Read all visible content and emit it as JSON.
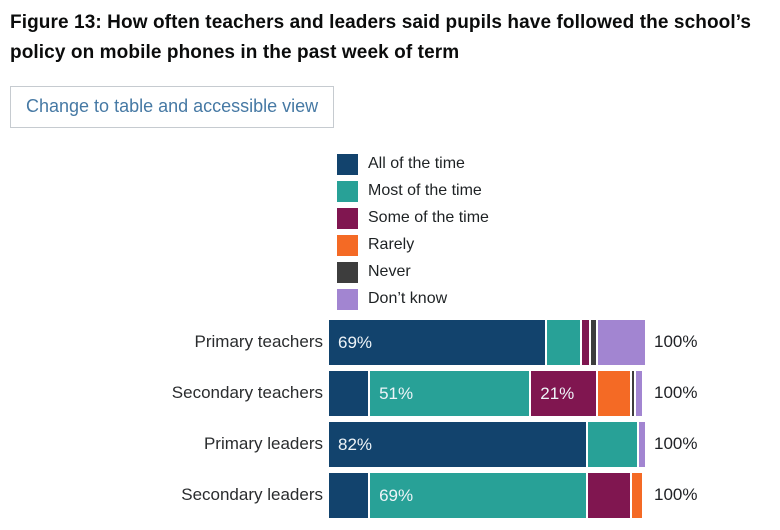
{
  "title": "Figure 13: How often teachers and leaders said pupils have followed the school’s policy on mobile phones in the past week of term",
  "controls": {
    "table_view_label": "Change to table and accessible view"
  },
  "colors": {
    "title_text": "#0b0c0c",
    "button_text": "#4679a4",
    "button_border": "#c6cbd0",
    "bar_label_text": "#eef4f8",
    "segment_gap": "#ffffff"
  },
  "chart_data": {
    "type": "bar",
    "stacked": true,
    "orientation": "horizontal",
    "legend_position": "top",
    "grid": false,
    "xlim": [
      0,
      100
    ],
    "categories": [
      "Primary teachers",
      "Secondary teachers",
      "Primary leaders",
      "Secondary leaders"
    ],
    "series": [
      {
        "name": "All of the time",
        "color": "#12436D",
        "values": [
          69,
          13,
          82,
          13
        ],
        "labels": [
          "69%",
          "",
          "82%",
          ""
        ]
      },
      {
        "name": "Most of the time",
        "color": "#28A197",
        "values": [
          11,
          51,
          16,
          69
        ],
        "labels": [
          "",
          "51%",
          "",
          "69%"
        ]
      },
      {
        "name": "Some of the time",
        "color": "#801650",
        "values": [
          3,
          21,
          0,
          14
        ],
        "labels": [
          "",
          "21%",
          "",
          ""
        ]
      },
      {
        "name": "Rarely",
        "color": "#F46A25",
        "values": [
          0,
          11,
          0,
          3
        ],
        "labels": [
          "",
          "",
          "",
          ""
        ]
      },
      {
        "name": "Never",
        "color": "#3D3D3D",
        "values": [
          2,
          1,
          0,
          0
        ],
        "labels": [
          "",
          "",
          "",
          ""
        ]
      },
      {
        "name": "Don’t know",
        "color": "#A285D1",
        "values": [
          15,
          2,
          2,
          0
        ],
        "labels": [
          "",
          "",
          "",
          ""
        ]
      }
    ],
    "end_labels": [
      "100%",
      "100%",
      "100%",
      "100%"
    ]
  }
}
